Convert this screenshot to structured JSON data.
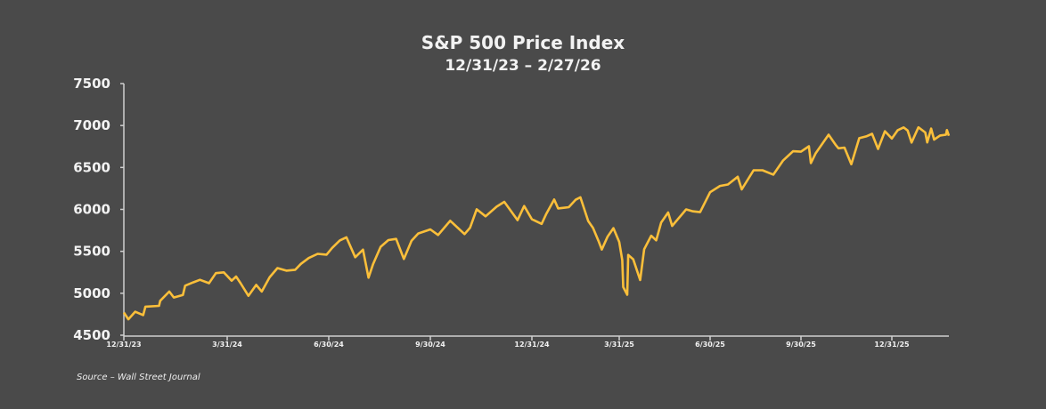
{
  "chart_data": {
    "type": "line",
    "title": "S&P 500 Price Index",
    "subtitle": "12/31/23 – 2/27/26",
    "source": "Source – Wall Street Journal",
    "xlabel": "",
    "ylabel": "",
    "ylim": [
      4500,
      7500
    ],
    "yticks": [
      "4500",
      "5000",
      "5500",
      "6000",
      "6500",
      "7000",
      "7500"
    ],
    "xticks": [
      "12/31/23",
      "3/31/24",
      "6/30/24",
      "9/30/24",
      "12/31/24",
      "3/31/25",
      "6/30/25",
      "9/30/25",
      "12/31/25"
    ],
    "xlim": [
      "2023-12-31",
      "2026-02-27"
    ],
    "grid": false,
    "line_color": "#fbbf3a",
    "series": [
      {
        "points": [
          [
            "2023-12-31",
            4770
          ],
          [
            "2024-01-04",
            4690
          ],
          [
            "2024-01-10",
            4780
          ],
          [
            "2024-01-17",
            4740
          ],
          [
            "2024-01-19",
            4840
          ],
          [
            "2024-01-31",
            4850
          ],
          [
            "2024-02-01",
            4910
          ],
          [
            "2024-02-09",
            5020
          ],
          [
            "2024-02-13",
            4950
          ],
          [
            "2024-02-21",
            4980
          ],
          [
            "2024-02-23",
            5090
          ],
          [
            "2024-03-01",
            5130
          ],
          [
            "2024-03-07",
            5160
          ],
          [
            "2024-03-15",
            5120
          ],
          [
            "2024-03-21",
            5240
          ],
          [
            "2024-03-28",
            5250
          ],
          [
            "2024-04-04",
            5150
          ],
          [
            "2024-04-08",
            5200
          ],
          [
            "2024-04-12",
            5120
          ],
          [
            "2024-04-19",
            4970
          ],
          [
            "2024-04-26",
            5100
          ],
          [
            "2024-05-01",
            5020
          ],
          [
            "2024-05-08",
            5190
          ],
          [
            "2024-05-15",
            5300
          ],
          [
            "2024-05-23",
            5270
          ],
          [
            "2024-05-31",
            5280
          ],
          [
            "2024-06-05",
            5350
          ],
          [
            "2024-06-12",
            5420
          ],
          [
            "2024-06-20",
            5470
          ],
          [
            "2024-06-28",
            5460
          ],
          [
            "2024-07-03",
            5540
          ],
          [
            "2024-07-10",
            5630
          ],
          [
            "2024-07-16",
            5667
          ],
          [
            "2024-07-24",
            5430
          ],
          [
            "2024-07-31",
            5520
          ],
          [
            "2024-08-05",
            5186
          ],
          [
            "2024-08-09",
            5344
          ],
          [
            "2024-08-16",
            5554
          ],
          [
            "2024-08-23",
            5634
          ],
          [
            "2024-08-30",
            5648
          ],
          [
            "2024-09-06",
            5408
          ],
          [
            "2024-09-13",
            5626
          ],
          [
            "2024-09-19",
            5713
          ],
          [
            "2024-09-30",
            5762
          ],
          [
            "2024-10-07",
            5695
          ],
          [
            "2024-10-18",
            5864
          ],
          [
            "2024-10-31",
            5705
          ],
          [
            "2024-11-05",
            5782
          ],
          [
            "2024-11-11",
            6001
          ],
          [
            "2024-11-19",
            5917
          ],
          [
            "2024-11-29",
            6032
          ],
          [
            "2024-12-06",
            6090
          ],
          [
            "2024-12-18",
            5872
          ],
          [
            "2024-12-24",
            6040
          ],
          [
            "2024-12-31",
            5882
          ],
          [
            "2025-01-10",
            5827
          ],
          [
            "2025-01-15",
            5950
          ],
          [
            "2025-01-23",
            6118
          ],
          [
            "2025-01-27",
            6012
          ],
          [
            "2025-02-07",
            6026
          ],
          [
            "2025-02-14",
            6114
          ],
          [
            "2025-02-19",
            6144
          ],
          [
            "2025-02-27",
            5861
          ],
          [
            "2025-03-04",
            5778
          ],
          [
            "2025-03-10",
            5614
          ],
          [
            "2025-03-13",
            5521
          ],
          [
            "2025-03-19",
            5675
          ],
          [
            "2025-03-25",
            5776
          ],
          [
            "2025-03-31",
            5612
          ],
          [
            "2025-04-03",
            5396
          ],
          [
            "2025-04-04",
            5074
          ],
          [
            "2025-04-08",
            4982
          ],
          [
            "2025-04-09",
            5457
          ],
          [
            "2025-04-14",
            5405
          ],
          [
            "2025-04-21",
            5158
          ],
          [
            "2025-04-25",
            5525
          ],
          [
            "2025-05-02",
            5686
          ],
          [
            "2025-05-07",
            5631
          ],
          [
            "2025-05-12",
            5844
          ],
          [
            "2025-05-19",
            5963
          ],
          [
            "2025-05-23",
            5803
          ],
          [
            "2025-06-06",
            6000
          ],
          [
            "2025-06-13",
            5977
          ],
          [
            "2025-06-20",
            5967
          ],
          [
            "2025-06-30",
            6205
          ],
          [
            "2025-07-10",
            6280
          ],
          [
            "2025-07-18",
            6297
          ],
          [
            "2025-07-28",
            6389
          ],
          [
            "2025-08-01",
            6238
          ],
          [
            "2025-08-13",
            6466
          ],
          [
            "2025-08-22",
            6466
          ],
          [
            "2025-09-02",
            6415
          ],
          [
            "2025-09-12",
            6584
          ],
          [
            "2025-09-22",
            6693
          ],
          [
            "2025-09-30",
            6688
          ],
          [
            "2025-10-08",
            6753
          ],
          [
            "2025-10-10",
            6552
          ],
          [
            "2025-10-15",
            6671
          ],
          [
            "2025-10-28",
            6890
          ],
          [
            "2025-11-04",
            6771
          ],
          [
            "2025-11-07",
            6728
          ],
          [
            "2025-11-13",
            6737
          ],
          [
            "2025-11-20",
            6538
          ],
          [
            "2025-11-28",
            6849
          ],
          [
            "2025-12-05",
            6870
          ],
          [
            "2025-12-11",
            6901
          ],
          [
            "2025-12-17",
            6721
          ],
          [
            "2025-12-24",
            6932
          ],
          [
            "2025-12-31",
            6845
          ],
          [
            "2026-01-06",
            6944
          ],
          [
            "2026-01-12",
            6977
          ],
          [
            "2026-01-16",
            6940
          ],
          [
            "2026-01-20",
            6797
          ],
          [
            "2026-01-27",
            6978
          ],
          [
            "2026-02-03",
            6917
          ],
          [
            "2026-02-05",
            6798
          ],
          [
            "2026-02-09",
            6964
          ],
          [
            "2026-02-12",
            6832
          ],
          [
            "2026-02-18",
            6881
          ],
          [
            "2026-02-24",
            6890
          ],
          [
            "2026-02-25",
            6946
          ],
          [
            "2026-02-27",
            6878
          ]
        ]
      }
    ]
  }
}
